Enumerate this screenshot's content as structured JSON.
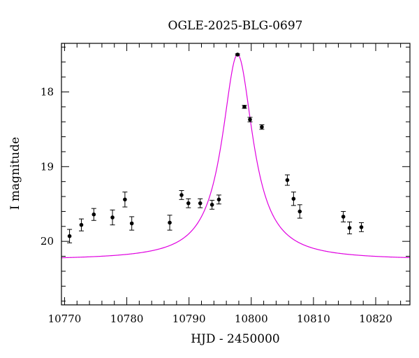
{
  "chart_data": {
    "type": "scatter",
    "title": "OGLE-2025-BLG-0697",
    "xlabel": "HJD - 2450000",
    "ylabel": "I magnitude",
    "xlim": [
      10769.5,
      10825.5
    ],
    "ylim": [
      20.85,
      17.35
    ],
    "y_inverted": true,
    "grid": false,
    "x_ticks": [
      10770,
      10780,
      10790,
      10800,
      10810,
      10820
    ],
    "y_ticks": [
      18,
      19,
      20
    ],
    "x_minor_step": 2,
    "y_minor_step": 0.2,
    "point_color": "#000000",
    "model_color": "#e000e0",
    "series": [
      {
        "kind": "points",
        "x": [
          10770.8,
          10772.7,
          10774.7,
          10777.7,
          10779.7,
          10780.8,
          10786.9,
          10788.8,
          10789.9,
          10791.8,
          10793.7,
          10794.8,
          10797.8,
          10798.9,
          10799.8,
          10801.7,
          10805.8,
          10806.8,
          10807.8,
          10814.8,
          10815.8,
          10817.7
        ],
        "y": [
          19.93,
          19.78,
          19.64,
          19.68,
          19.44,
          19.76,
          19.75,
          19.38,
          19.49,
          19.49,
          19.51,
          19.44,
          17.5,
          18.2,
          18.37,
          18.47,
          19.18,
          19.43,
          19.6,
          19.67,
          19.82,
          19.81
        ],
        "yerr": [
          0.09,
          0.08,
          0.08,
          0.1,
          0.1,
          0.09,
          0.1,
          0.06,
          0.06,
          0.06,
          0.06,
          0.06,
          0.01,
          0.02,
          0.03,
          0.03,
          0.07,
          0.09,
          0.09,
          0.07,
          0.08,
          0.06
        ]
      },
      {
        "kind": "model",
        "t0": 10797.8,
        "peak_mag": 17.5,
        "baseline_mag": 20.25,
        "width": 3.0
      }
    ]
  }
}
